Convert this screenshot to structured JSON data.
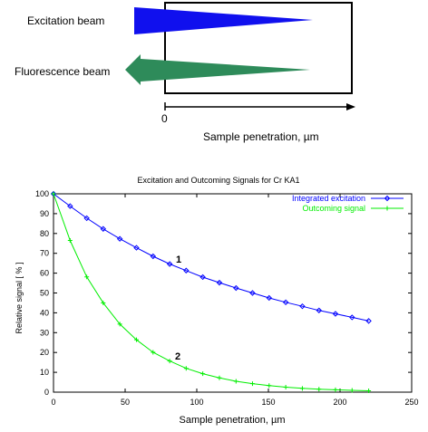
{
  "diagram": {
    "excitation_label": "Excitation beam",
    "fluorescence_label": "Fluorescence beam",
    "zero_label": "0",
    "axis_label": "Sample penetration, µm",
    "colors": {
      "excitation": "#1010ee",
      "fluorescence": "#2e8b5a",
      "outline": "#000000"
    }
  },
  "chart_data": {
    "type": "line",
    "title": "Excitation and Outcoming Signals for Cr KA1",
    "xlabel": "Sample penetration, µm",
    "ylabel": "Relative signal [ % ]",
    "xlim": [
      0,
      250
    ],
    "ylim": [
      0,
      100
    ],
    "xticks": [
      0,
      50,
      100,
      150,
      200,
      250
    ],
    "yticks": [
      0,
      10,
      20,
      30,
      40,
      50,
      60,
      70,
      80,
      90,
      100
    ],
    "grid": false,
    "legend_position": "top-right",
    "x": [
      0,
      11.6,
      23.2,
      34.7,
      46.3,
      57.9,
      69.5,
      81.1,
      92.6,
      104.2,
      115.8,
      127.4,
      138.9,
      150.5,
      162.1,
      173.7,
      185.3,
      196.8,
      208.4,
      220
    ],
    "series": [
      {
        "name": "Integrated excitation",
        "color": "#0000ff",
        "marker": "diamond",
        "annotation": "1",
        "values": [
          100,
          93.8,
          87.7,
          82.3,
          77.3,
          72.8,
          68.5,
          64.6,
          61.3,
          58.0,
          55.2,
          52.5,
          50.0,
          47.5,
          45.3,
          43.3,
          41.2,
          39.5,
          37.7,
          35.9
        ]
      },
      {
        "name": "Outcoming signal",
        "color": "#00ee00",
        "marker": "plus",
        "annotation": "2",
        "values": [
          100,
          76.5,
          58.1,
          45.0,
          34.3,
          26.4,
          20.1,
          15.7,
          12.0,
          9.3,
          7.2,
          5.5,
          4.3,
          3.3,
          2.5,
          1.9,
          1.5,
          1.2,
          0.9,
          0.7
        ]
      }
    ]
  }
}
